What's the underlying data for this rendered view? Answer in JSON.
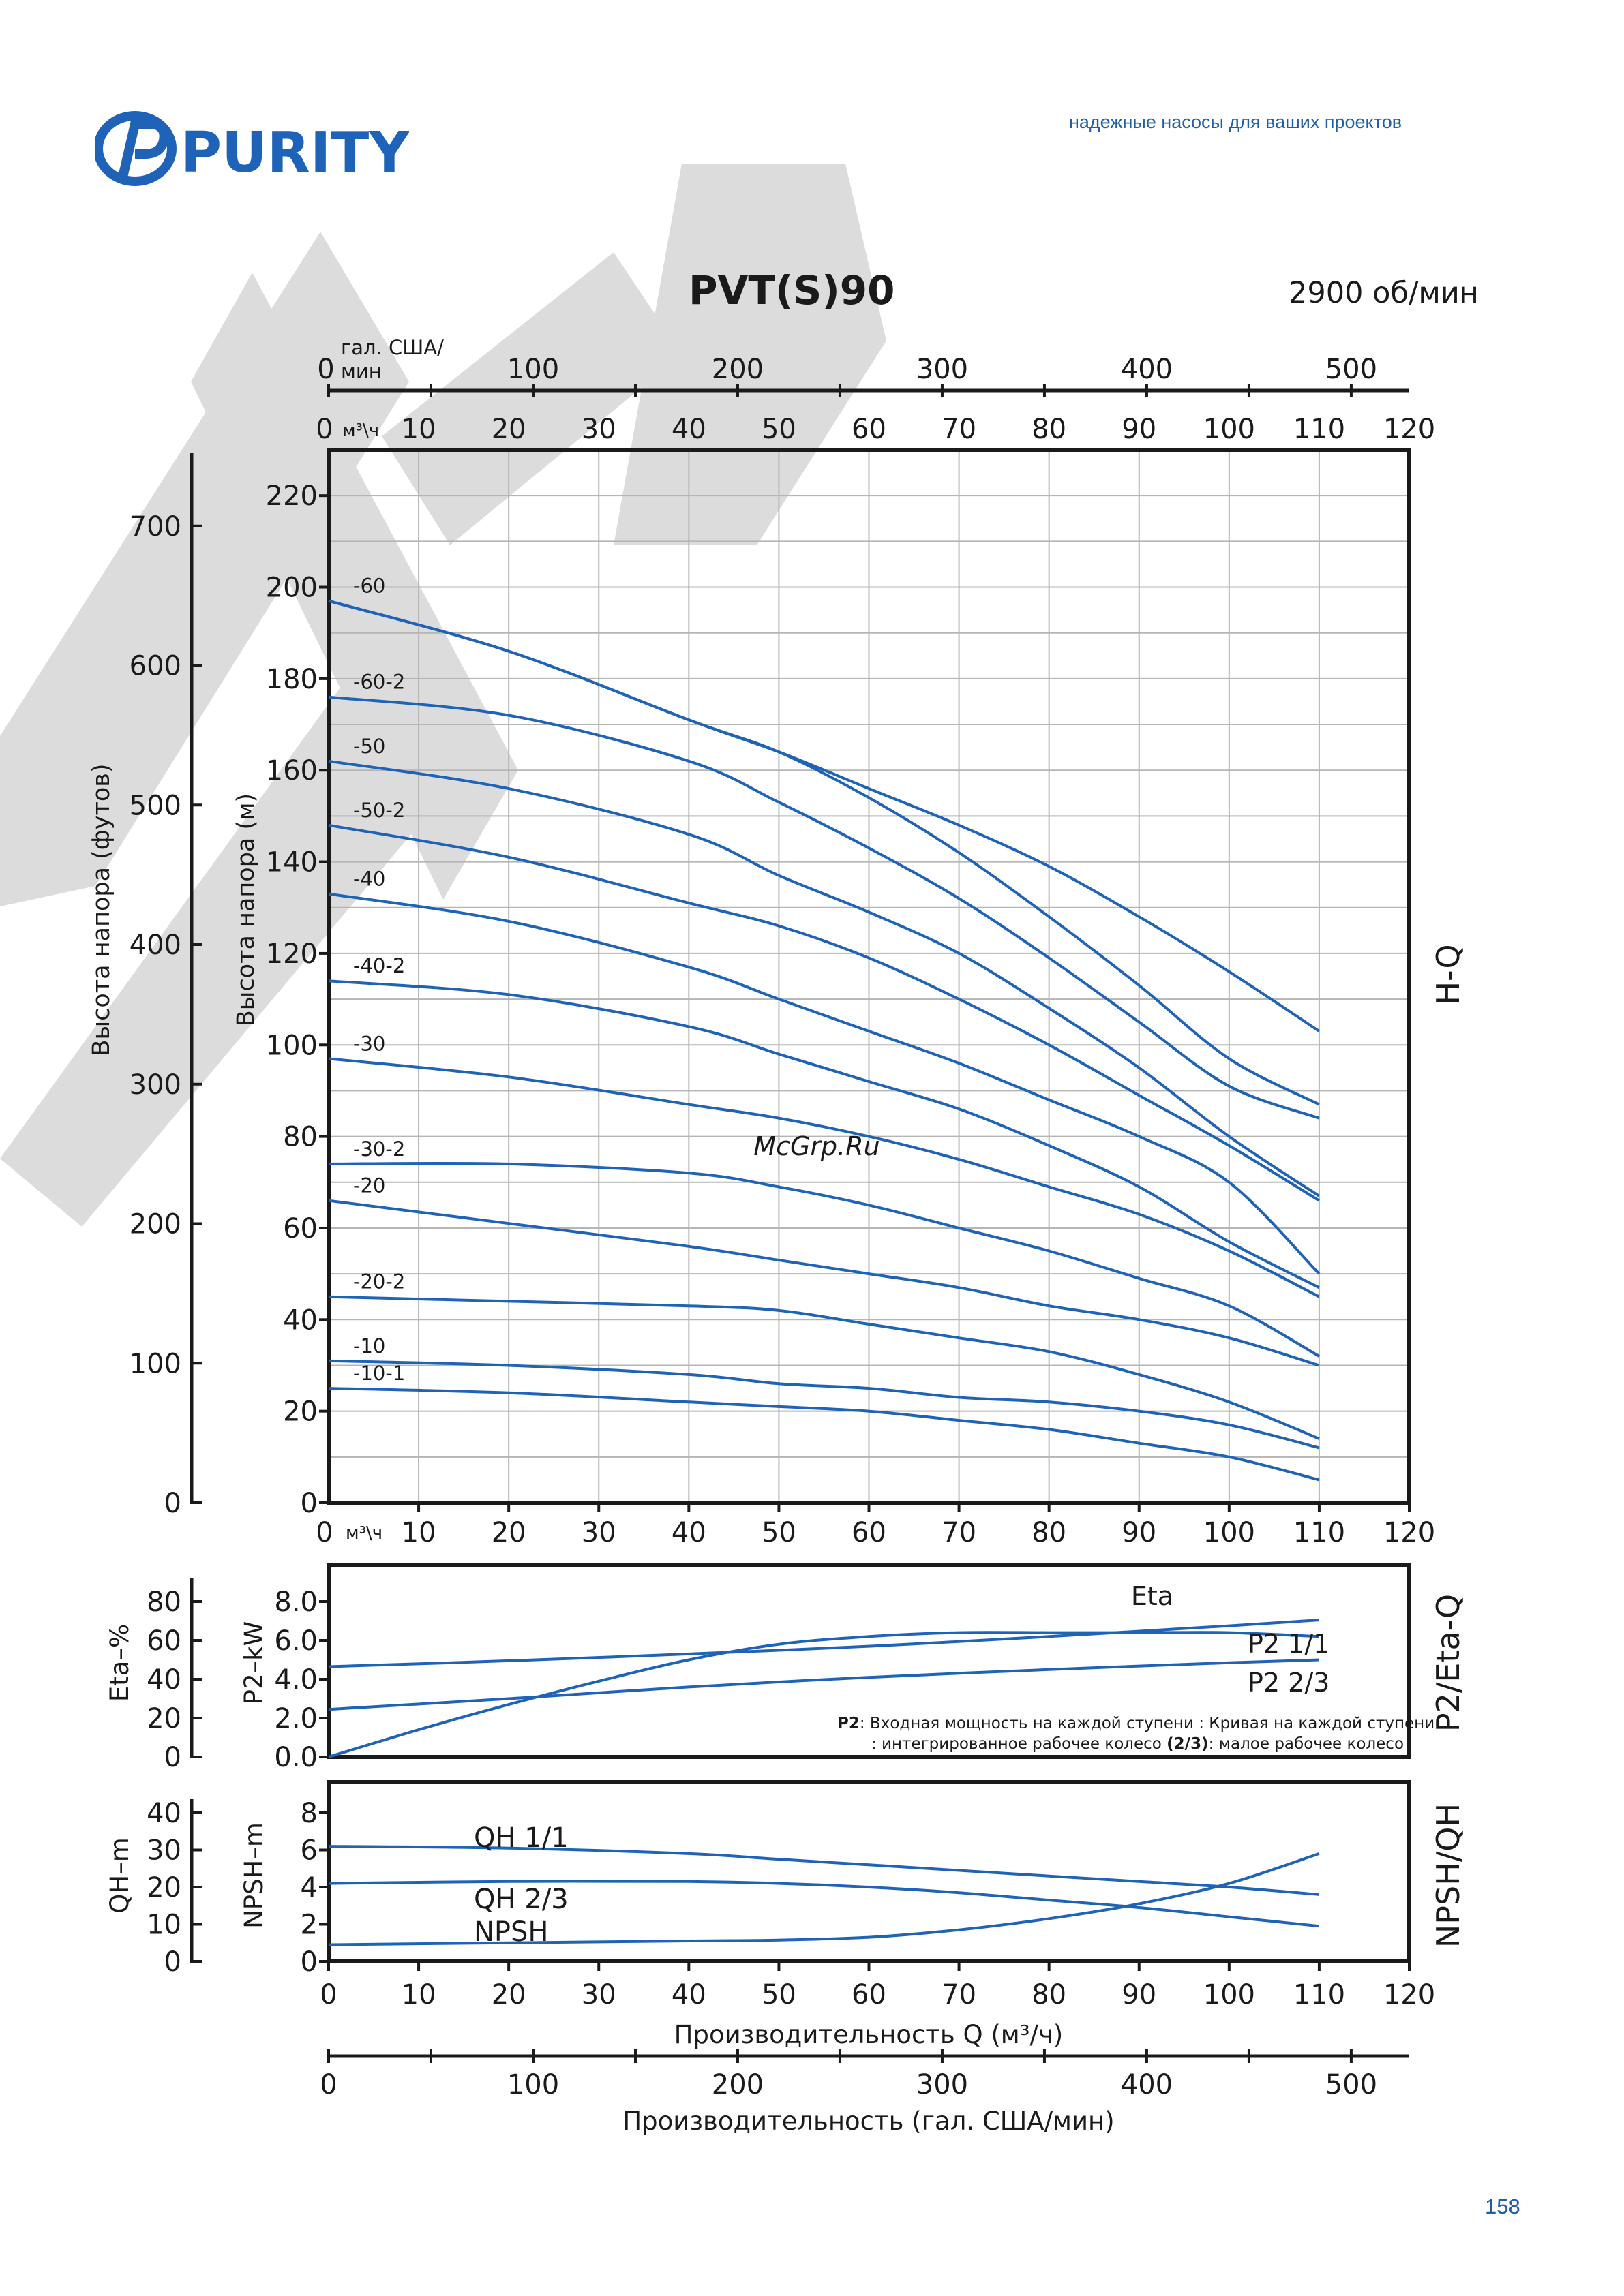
{
  "brand": {
    "name": "PURITY",
    "tagline": "надежные насосы для ваших проектов"
  },
  "header": {
    "model": "PVT(S)90",
    "speed": "2900 об/мин"
  },
  "page_number": "158",
  "watermark_text": "McGrp.Ru",
  "colors": {
    "brand_blue": "#1e63b8",
    "watermark_gray": "#d9d9d9",
    "axis": "#1a1a1a",
    "grid": "#b5b5b5"
  },
  "chart_data": [
    {
      "id": "hq",
      "type": "line",
      "panel_label": "H-Q",
      "xlabel_top_gpm": "гал. США/\nмин",
      "x_unit_label": "м³\\ч",
      "ylabel_m": "Высота напора (м)",
      "ylabel_ft": "Высота напора (футов)",
      "xlim": [
        0,
        120
      ],
      "ylim": [
        0,
        230
      ],
      "x_ticks": [
        0,
        10,
        20,
        30,
        40,
        50,
        60,
        70,
        80,
        90,
        100,
        110,
        120
      ],
      "y_ticks": [
        0,
        20,
        40,
        60,
        80,
        100,
        120,
        140,
        160,
        180,
        200,
        220
      ],
      "ft_ticks": [
        0,
        100,
        200,
        300,
        400,
        500,
        600,
        700
      ],
      "gpm_ticks": [
        0,
        100,
        200,
        300,
        400,
        500
      ],
      "grid": true,
      "series": [
        {
          "name": "-60",
          "x": [
            0,
            20,
            40,
            50,
            60,
            70,
            80,
            90,
            100,
            110
          ],
          "y": [
            197,
            186,
            171,
            164,
            156,
            148,
            139,
            128,
            116,
            103
          ]
        },
        {
          "name": "",
          "x": [
            0,
            20,
            40,
            50,
            60,
            70,
            80,
            90,
            100,
            110
          ],
          "y": [
            197,
            186,
            171,
            164,
            154,
            142,
            128,
            113,
            97,
            87
          ]
        },
        {
          "name": "-60-2",
          "x": [
            0,
            20,
            40,
            50,
            60,
            70,
            80,
            90,
            100,
            110
          ],
          "y": [
            176,
            172,
            162,
            153,
            143,
            132,
            119,
            105,
            91,
            84
          ]
        },
        {
          "name": "-50",
          "x": [
            0,
            20,
            40,
            50,
            60,
            70,
            80,
            90,
            100,
            110
          ],
          "y": [
            162,
            156,
            146,
            137,
            129,
            120,
            108,
            95,
            80,
            67
          ]
        },
        {
          "name": "-50-2",
          "x": [
            0,
            20,
            40,
            50,
            60,
            70,
            80,
            90,
            100,
            110
          ],
          "y": [
            148,
            141,
            131,
            126,
            119,
            110,
            100,
            89,
            78,
            66
          ]
        },
        {
          "name": "-40",
          "x": [
            0,
            20,
            40,
            50,
            60,
            70,
            80,
            90,
            100,
            110
          ],
          "y": [
            133,
            127,
            117,
            110,
            103,
            96,
            88,
            80,
            70,
            50
          ]
        },
        {
          "name": "-40-2",
          "x": [
            0,
            20,
            40,
            50,
            60,
            70,
            80,
            90,
            100,
            110
          ],
          "y": [
            114,
            111,
            104,
            98,
            92,
            86,
            78,
            69,
            57,
            47
          ]
        },
        {
          "name": "-30",
          "x": [
            0,
            20,
            40,
            50,
            60,
            70,
            80,
            90,
            100,
            110
          ],
          "y": [
            97,
            93,
            87,
            84,
            80,
            75,
            69,
            63,
            55,
            45
          ]
        },
        {
          "name": "-30-2",
          "x": [
            0,
            20,
            40,
            50,
            60,
            70,
            80,
            90,
            100,
            110
          ],
          "y": [
            74,
            74,
            72,
            69,
            65,
            60,
            55,
            49,
            43,
            32
          ]
        },
        {
          "name": "-20",
          "x": [
            0,
            20,
            40,
            50,
            60,
            70,
            80,
            90,
            100,
            110
          ],
          "y": [
            66,
            61,
            56,
            53,
            50,
            47,
            43,
            40,
            36,
            30
          ]
        },
        {
          "name": "-20-2",
          "x": [
            0,
            20,
            40,
            50,
            60,
            70,
            80,
            90,
            100,
            110
          ],
          "y": [
            45,
            44,
            43,
            42,
            39,
            36,
            33,
            28,
            22,
            14
          ]
        },
        {
          "name": "-10",
          "x": [
            0,
            20,
            40,
            50,
            60,
            70,
            80,
            90,
            100,
            110
          ],
          "y": [
            31,
            30,
            28,
            26,
            25,
            23,
            22,
            20,
            17,
            12
          ]
        },
        {
          "name": "-10-1",
          "x": [
            0,
            20,
            40,
            50,
            60,
            70,
            80,
            90,
            100,
            110
          ],
          "y": [
            25,
            24,
            22,
            21,
            20,
            18,
            16,
            13,
            10,
            5
          ]
        }
      ]
    },
    {
      "id": "p2eta",
      "type": "line",
      "panel_label": "P2/Eta-Q",
      "ylabel_left": "Eta–%",
      "ylabel_right": "P2–kW",
      "xlim": [
        0,
        110
      ],
      "ylim_kw": [
        0,
        8.0
      ],
      "ylim_eta": [
        0,
        80
      ],
      "kw_ticks": [
        "0.0",
        "2.0",
        "4.0",
        "6.0",
        "8.0"
      ],
      "eta_ticks": [
        0,
        20,
        40,
        60,
        80
      ],
      "series": [
        {
          "name": "Eta",
          "axis": "eta",
          "x": [
            0,
            10,
            20,
            30,
            40,
            50,
            60,
            70,
            80,
            90,
            100,
            110
          ],
          "y": [
            0,
            14,
            27,
            39,
            50,
            58,
            62,
            64,
            64,
            64,
            64,
            62
          ]
        },
        {
          "name": "P2 1/1",
          "axis": "kw",
          "x": [
            0,
            20,
            40,
            60,
            80,
            100,
            110
          ],
          "y": [
            4.65,
            4.95,
            5.3,
            5.7,
            6.2,
            6.75,
            7.05
          ]
        },
        {
          "name": "P2 2/3",
          "axis": "kw",
          "x": [
            0,
            20,
            40,
            60,
            80,
            100,
            110
          ],
          "y": [
            2.45,
            3.0,
            3.6,
            4.1,
            4.5,
            4.85,
            5.0
          ]
        }
      ],
      "note_line1": {
        "bold": "P2",
        "text": ": Входная мощность на каждой ступени       : Кривая на каждой ступени"
      },
      "note_line2": {
        "pre": ": интегрированное рабочее колесо ",
        "bold1": "(2/3)",
        "mid": ": малое рабочее колесо"
      }
    },
    {
      "id": "npsh",
      "type": "line",
      "panel_label": "NPSH/QH",
      "ylabel_left": "QH–m",
      "ylabel_right": "NPSH–m",
      "xlim": [
        0,
        120
      ],
      "ylim_m": [
        0,
        10
      ],
      "npsh_ticks": [
        0,
        2,
        4,
        6,
        8
      ],
      "qh_ticks": [
        0,
        10,
        20,
        30,
        40
      ],
      "x_ticks": [
        0,
        10,
        20,
        30,
        40,
        50,
        60,
        70,
        80,
        90,
        100,
        110,
        120
      ],
      "gpm_ticks": [
        0,
        100,
        200,
        300,
        400,
        500
      ],
      "xlabel": "Производительность Q (м³/ч)",
      "xlabel_gpm": "Производительность (гал. США/мин)",
      "series": [
        {
          "name": "QH 1/1",
          "x": [
            0,
            20,
            40,
            50,
            60,
            70,
            80,
            90,
            100,
            110
          ],
          "y": [
            6.2,
            6.1,
            5.8,
            5.5,
            5.2,
            4.9,
            4.6,
            4.3,
            4.0,
            3.6
          ]
        },
        {
          "name": "QH 2/3",
          "x": [
            0,
            20,
            40,
            50,
            60,
            70,
            80,
            90,
            100,
            110
          ],
          "y": [
            4.2,
            4.3,
            4.3,
            4.2,
            4.0,
            3.7,
            3.3,
            2.9,
            2.4,
            1.9
          ]
        },
        {
          "name": "NPSH",
          "x": [
            0,
            20,
            40,
            50,
            60,
            70,
            80,
            90,
            100,
            110
          ],
          "y": [
            0.9,
            1.0,
            1.1,
            1.15,
            1.3,
            1.7,
            2.3,
            3.1,
            4.2,
            5.8
          ]
        }
      ]
    }
  ]
}
